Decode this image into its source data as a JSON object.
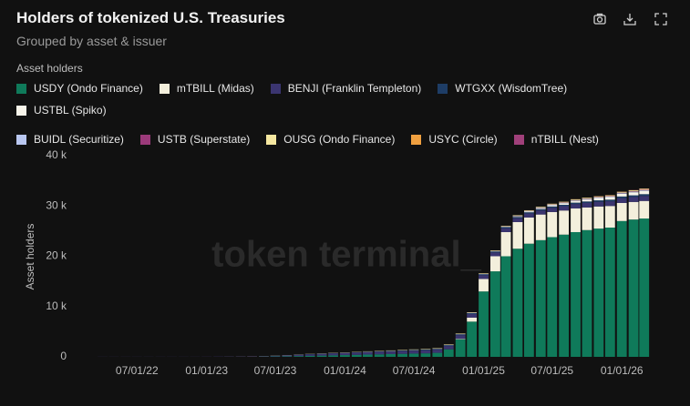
{
  "chart_data": {
    "type": "stacked-bar",
    "title": "Holders of tokenized U.S. Treasuries",
    "subtitle": "Grouped by asset & issuer",
    "legend_title": "Asset holders",
    "y_label": "Asset holders",
    "watermark": "token terminal_",
    "x": [
      "04/01/22",
      "05/01/22",
      "06/01/22",
      "07/01/22",
      "08/01/22",
      "09/01/22",
      "10/01/22",
      "11/01/22",
      "12/01/22",
      "01/01/23",
      "02/01/23",
      "03/01/23",
      "04/01/23",
      "05/01/23",
      "06/01/23",
      "07/01/23",
      "08/01/23",
      "09/01/23",
      "10/01/23",
      "11/01/23",
      "12/01/23",
      "01/01/24",
      "02/01/24",
      "03/01/24",
      "04/01/24",
      "05/01/24",
      "06/01/24",
      "07/01/24",
      "08/01/24",
      "09/01/24",
      "10/01/24",
      "11/01/24",
      "12/01/24",
      "01/01/25",
      "02/01/25",
      "03/01/25",
      "04/01/25",
      "05/01/25",
      "06/01/25",
      "07/01/25",
      "08/01/25",
      "09/01/25",
      "10/01/25",
      "11/01/25",
      "12/01/25",
      "01/01/26",
      "02/01/26",
      "03/01/26"
    ],
    "xlim": [
      "02/18/22",
      "04/26/26"
    ],
    "xticks": [
      "07/01/22",
      "01/01/23",
      "07/01/23",
      "01/01/24",
      "07/01/24",
      "01/01/25",
      "07/01/25",
      "01/01/26"
    ],
    "ylim": [
      0,
      40000
    ],
    "yticks": [
      0,
      {
        "value": 10000,
        "label": "10 k"
      },
      {
        "value": 20000,
        "label": "20 k"
      },
      {
        "value": 30000,
        "label": "30 k"
      },
      {
        "value": 40000,
        "label": "40 k"
      }
    ],
    "grid": false,
    "series": [
      {
        "name": "USDY (Ondo Finance)",
        "color": "#0f7a5a",
        "values": [
          0,
          0,
          0,
          0,
          0,
          0,
          0,
          0,
          0,
          0,
          0,
          0,
          0,
          0,
          50,
          80,
          100,
          150,
          200,
          250,
          300,
          350,
          400,
          450,
          500,
          550,
          600,
          650,
          700,
          800,
          1500,
          3500,
          7000,
          13000,
          17000,
          20000,
          21500,
          22500,
          23200,
          23800,
          24300,
          24800,
          25200,
          25500,
          25700,
          27000,
          27300,
          27500
        ]
      },
      {
        "name": "mTBILL (Midas)",
        "color": "#f3efdc",
        "values": [
          0,
          0,
          0,
          0,
          0,
          0,
          0,
          0,
          0,
          0,
          0,
          0,
          0,
          0,
          0,
          0,
          0,
          0,
          0,
          0,
          0,
          0,
          0,
          0,
          0,
          0,
          0,
          0,
          0,
          0,
          0,
          100,
          800,
          2500,
          3000,
          4800,
          5300,
          5200,
          5100,
          5000,
          4800,
          4700,
          4500,
          4400,
          4300,
          3600,
          3500,
          3500
        ]
      },
      {
        "name": "BENJI (Franklin Templeton)",
        "color": "#3b3570",
        "values": [
          20,
          20,
          20,
          20,
          20,
          20,
          20,
          20,
          20,
          30,
          40,
          50,
          60,
          80,
          100,
          150,
          200,
          250,
          300,
          350,
          400,
          420,
          450,
          480,
          500,
          520,
          550,
          580,
          600,
          620,
          650,
          680,
          700,
          720,
          740,
          760,
          780,
          800,
          820,
          840,
          860,
          880,
          900,
          920,
          940,
          960,
          980,
          1000
        ]
      },
      {
        "name": "WTGXX (WisdomTree)",
        "color": "#1e3d66",
        "values": [
          0,
          0,
          0,
          0,
          0,
          0,
          0,
          0,
          0,
          0,
          0,
          0,
          0,
          0,
          10,
          20,
          30,
          40,
          50,
          60,
          70,
          80,
          90,
          100,
          110,
          120,
          130,
          140,
          150,
          160,
          170,
          180,
          190,
          200,
          210,
          220,
          230,
          240,
          250,
          260,
          270,
          280,
          290,
          300,
          310,
          320,
          330,
          340
        ]
      },
      {
        "name": "USTBL (Spiko)",
        "color": "#f7f4ea",
        "values": [
          0,
          0,
          0,
          0,
          0,
          0,
          0,
          0,
          0,
          0,
          0,
          0,
          0,
          0,
          0,
          0,
          0,
          0,
          0,
          0,
          0,
          0,
          0,
          0,
          0,
          0,
          0,
          0,
          0,
          0,
          0,
          0,
          0,
          0,
          0,
          50,
          100,
          150,
          200,
          250,
          300,
          350,
          400,
          450,
          500,
          550,
          600,
          650
        ]
      },
      {
        "name": "BUIDL (Securitize)",
        "color": "#b9c7f0",
        "values": [
          0,
          0,
          0,
          0,
          0,
          0,
          0,
          0,
          0,
          0,
          0,
          0,
          0,
          0,
          0,
          0,
          0,
          0,
          0,
          0,
          0,
          0,
          0,
          5,
          10,
          15,
          20,
          25,
          30,
          35,
          40,
          45,
          50,
          55,
          60,
          65,
          70,
          75,
          80,
          85,
          90,
          95,
          100,
          105,
          110,
          115,
          120,
          125
        ]
      },
      {
        "name": "USTB (Superstate)",
        "color": "#9b3a7a",
        "values": [
          0,
          0,
          0,
          0,
          0,
          0,
          0,
          0,
          0,
          0,
          0,
          0,
          0,
          0,
          0,
          0,
          0,
          0,
          0,
          0,
          0,
          0,
          0,
          0,
          0,
          0,
          0,
          0,
          0,
          5,
          10,
          15,
          20,
          25,
          30,
          35,
          40,
          45,
          50,
          55,
          60,
          65,
          70,
          75,
          80,
          85,
          90,
          95
        ]
      },
      {
        "name": "OUSG (Ondo Finance)",
        "color": "#f5e7a0",
        "values": [
          0,
          0,
          0,
          0,
          0,
          0,
          0,
          0,
          0,
          0,
          0,
          5,
          10,
          15,
          20,
          25,
          30,
          35,
          40,
          45,
          50,
          55,
          60,
          65,
          70,
          75,
          80,
          85,
          90,
          95,
          100,
          105,
          110,
          115,
          120,
          125,
          130,
          135,
          140,
          145,
          150,
          155,
          160,
          165,
          170,
          175,
          180,
          185
        ]
      },
      {
        "name": "USYC (Circle)",
        "color": "#f0a040",
        "values": [
          0,
          0,
          0,
          0,
          0,
          0,
          0,
          0,
          0,
          0,
          0,
          0,
          0,
          0,
          0,
          0,
          0,
          0,
          0,
          0,
          0,
          0,
          0,
          0,
          0,
          0,
          0,
          0,
          0,
          0,
          0,
          0,
          0,
          0,
          0,
          0,
          0,
          0,
          5,
          10,
          15,
          20,
          25,
          30,
          35,
          40,
          45,
          50
        ]
      },
      {
        "name": "nTBILL (Nest)",
        "color": "#a0407a",
        "values": [
          0,
          0,
          0,
          0,
          0,
          0,
          0,
          0,
          0,
          0,
          0,
          0,
          0,
          0,
          0,
          0,
          0,
          0,
          0,
          0,
          0,
          0,
          0,
          0,
          0,
          0,
          0,
          0,
          0,
          0,
          0,
          0,
          0,
          0,
          0,
          0,
          0,
          0,
          0,
          0,
          0,
          0,
          0,
          5,
          10,
          15,
          20,
          25
        ]
      }
    ]
  }
}
